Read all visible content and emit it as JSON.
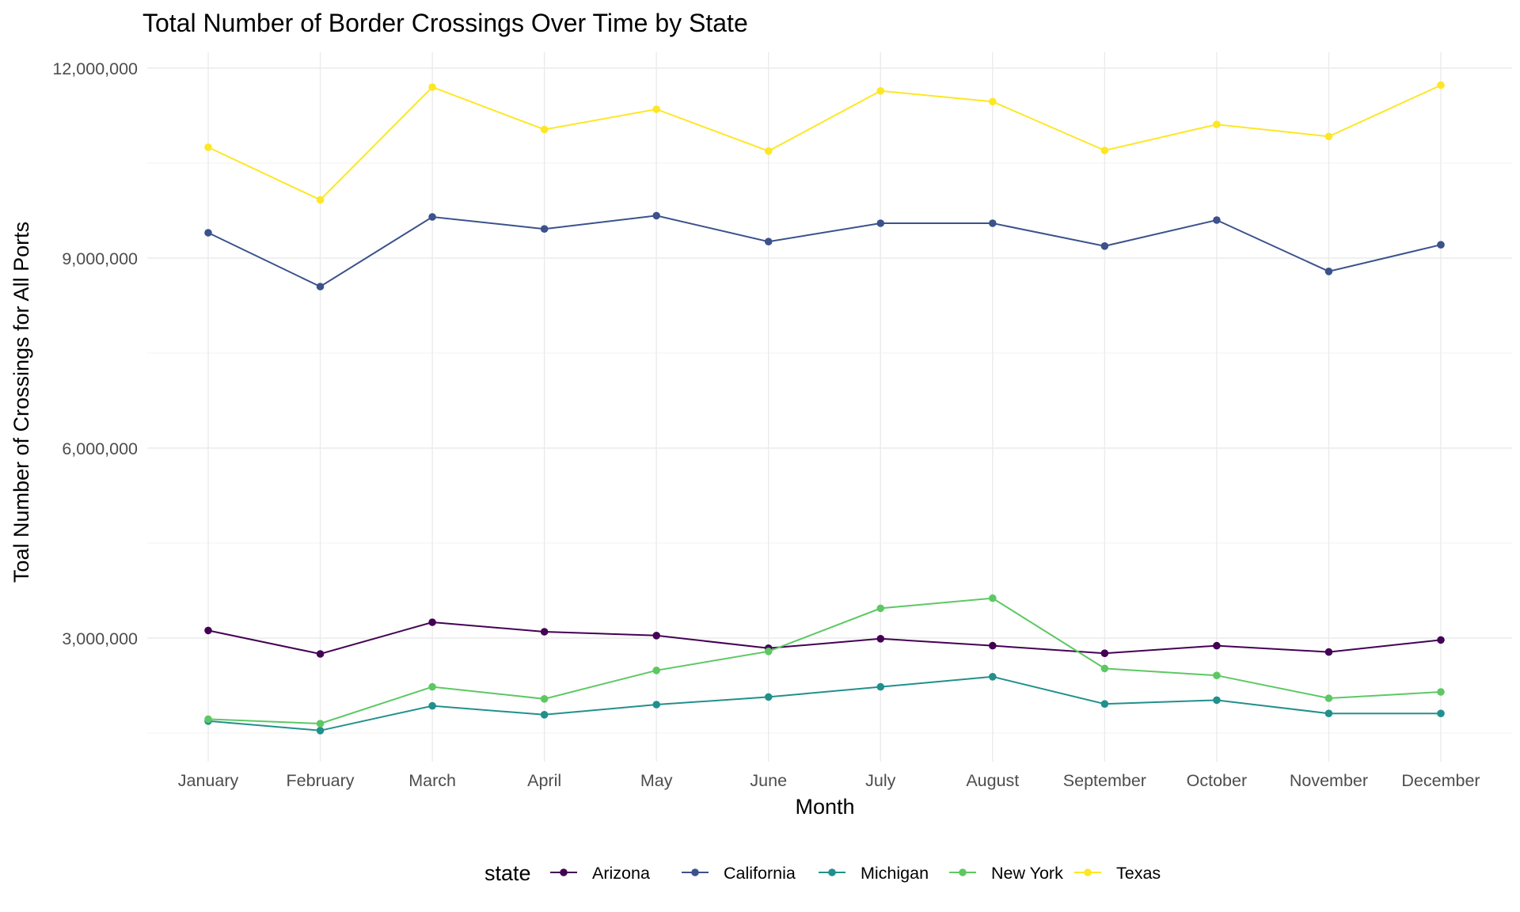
{
  "chart_data": {
    "type": "line",
    "title": "Total Number of Border Crossings Over Time by State",
    "xlabel": "Month",
    "ylabel": "Toal Number of Crossings for All Ports",
    "categories": [
      "January",
      "February",
      "March",
      "April",
      "May",
      "June",
      "July",
      "August",
      "September",
      "October",
      "November",
      "December"
    ],
    "ylim": [
      1050000,
      12250000
    ],
    "yticks": [
      3000000,
      6000000,
      9000000,
      12000000
    ],
    "ytick_labels": [
      "3,000,000",
      "6,000,000",
      "9,000,000",
      "12,000,000"
    ],
    "grid": true,
    "legend": {
      "title": "state",
      "position": "bottom"
    },
    "series": [
      {
        "name": "Arizona",
        "color": "#440154",
        "values": [
          3120000,
          2750000,
          3250000,
          3100000,
          3040000,
          2840000,
          2990000,
          2880000,
          2760000,
          2880000,
          2780000,
          2970000
        ]
      },
      {
        "name": "California",
        "color": "#3B528B",
        "values": [
          9400000,
          8550000,
          9650000,
          9460000,
          9670000,
          9260000,
          9550000,
          9550000,
          9190000,
          9600000,
          8790000,
          9210000
        ]
      },
      {
        "name": "Michigan",
        "color": "#21908C",
        "values": [
          1690000,
          1540000,
          1930000,
          1790000,
          1950000,
          2070000,
          2230000,
          2390000,
          1960000,
          2020000,
          1810000,
          1810000
        ]
      },
      {
        "name": "New York",
        "color": "#5DC863",
        "values": [
          1720000,
          1650000,
          2230000,
          2040000,
          2490000,
          2790000,
          3470000,
          3630000,
          2520000,
          2410000,
          2050000,
          2150000
        ]
      },
      {
        "name": "Texas",
        "color": "#FDE725",
        "values": [
          10750000,
          9920000,
          11700000,
          11030000,
          11350000,
          10690000,
          11640000,
          11470000,
          10700000,
          11110000,
          10920000,
          11730000
        ]
      }
    ]
  }
}
